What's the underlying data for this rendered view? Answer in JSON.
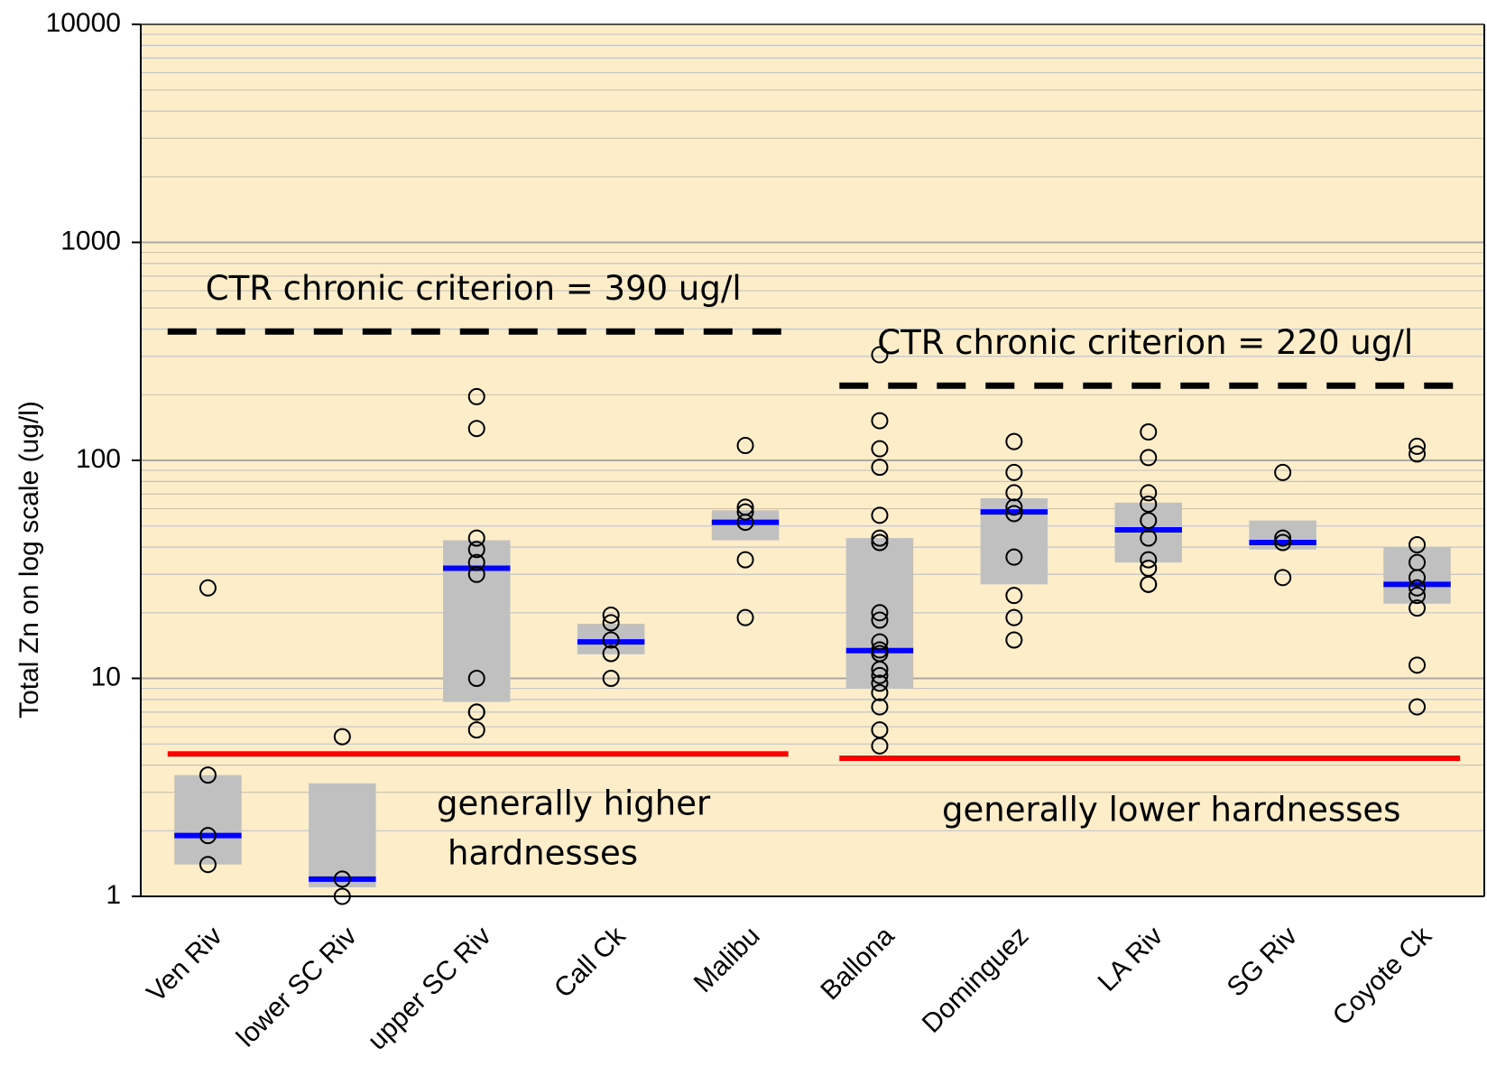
{
  "chart_data": {
    "type": "box",
    "y_label": "Total Zn on log scale (ug/l)",
    "categories": [
      "Ven Riv",
      "lower SC Riv",
      "upper SC Riv",
      "Call Ck",
      "Malibu",
      "Ballona",
      "Dominguez",
      "LA Riv",
      "SG Riv",
      "Coyote Ck"
    ],
    "boxes": [
      {
        "q1": 1.4,
        "median": 1.9,
        "q3": 3.6,
        "points": [
          26,
          3.6,
          1.9,
          1.4
        ]
      },
      {
        "q1": 1.1,
        "median": 1.2,
        "q3": 3.3,
        "points": [
          5.4,
          1.2,
          1.0
        ]
      },
      {
        "q1": 7.8,
        "median": 32,
        "q3": 43,
        "points": [
          196,
          140,
          44,
          39,
          34,
          30,
          10,
          7,
          7,
          5.8
        ]
      },
      {
        "q1": 12.9,
        "median": 14.7,
        "q3": 17.8,
        "points": [
          19.5,
          18,
          15,
          13,
          10
        ]
      },
      {
        "q1": 43,
        "median": 52,
        "q3": 59,
        "points": [
          117,
          61,
          58,
          52,
          35,
          19
        ]
      },
      {
        "q1": 9,
        "median": 13.4,
        "q3": 44,
        "points": [
          305,
          152,
          113,
          93,
          56,
          44,
          42,
          20,
          18.5,
          14.7,
          13.5,
          13,
          11,
          10.3,
          9.5,
          8.6,
          7.4,
          5.8,
          4.9
        ]
      },
      {
        "q1": 27,
        "median": 58,
        "q3": 67,
        "points": [
          122,
          88,
          71,
          61,
          57,
          36,
          24,
          19,
          15
        ]
      },
      {
        "q1": 34,
        "median": 48,
        "q3": 64,
        "points": [
          135,
          103,
          71,
          63,
          53,
          44,
          35,
          32,
          27,
          27
        ]
      },
      {
        "q1": 39,
        "median": 42,
        "q3": 53,
        "points": [
          88,
          44,
          42,
          29
        ]
      },
      {
        "q1": 22,
        "median": 27,
        "q3": 40,
        "points": [
          116,
          107,
          41,
          34,
          29,
          26,
          24,
          21,
          11.5,
          7.4
        ]
      }
    ],
    "box_color": "#c0c0c0",
    "median_color": "#0000ff",
    "point_color": "#000000",
    "background": "#fdedc8",
    "ylog": true,
    "ylim": [
      1,
      10000
    ],
    "yticks": [
      1,
      10,
      100,
      1000,
      10000
    ],
    "grid": true,
    "reference_lines": [
      {
        "value": 390,
        "label": "CTR chronic criterion = 390 ug/l",
        "style": "dashed",
        "color": "#000000",
        "from": "Ven Riv",
        "to": "Malibu"
      },
      {
        "value": 220,
        "label": "CTR chronic criterion = 220 ug/l",
        "style": "dashed",
        "color": "#000000",
        "from": "Ballona",
        "to": "Coyote Ck"
      },
      {
        "value": 4.5,
        "style": "solid",
        "color": "#ff0000",
        "from": "Ven Riv",
        "to": "Malibu"
      },
      {
        "value": 4.3,
        "style": "solid",
        "color": "#ff0000",
        "from": "Ballona",
        "to": "Coyote Ck"
      }
    ],
    "annotations": [
      "generally higher",
      "hardnesses",
      "generally lower hardnesses"
    ]
  }
}
